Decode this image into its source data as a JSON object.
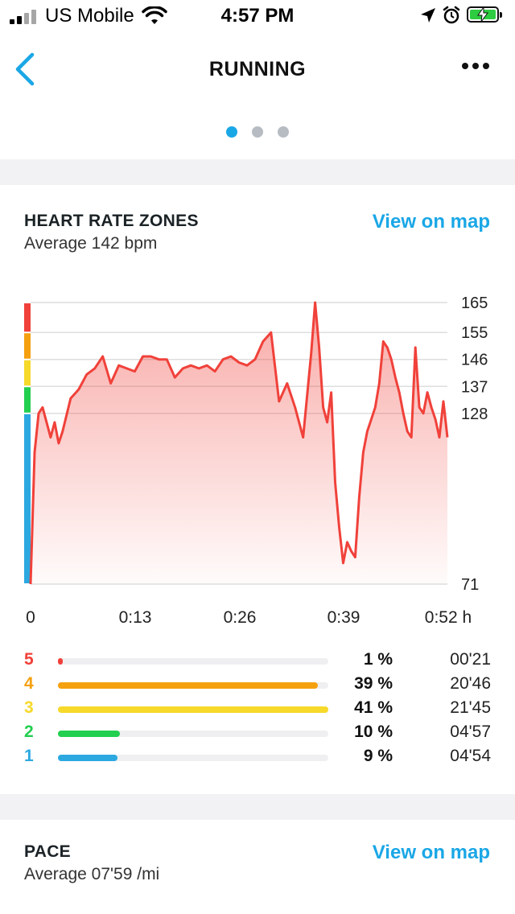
{
  "status_bar": {
    "carrier": "US Mobile",
    "time": "4:57 PM"
  },
  "nav": {
    "title": "RUNNING"
  },
  "pager": {
    "count": 3,
    "active": 0
  },
  "heart_rate": {
    "title": "HEART RATE ZONES",
    "subtitle": "Average 142 bpm",
    "map_link": "View on map",
    "zones": [
      {
        "num": "5",
        "pct_label": "1 %",
        "time": "00'21",
        "fraction": 0.01,
        "color": "#f0413a"
      },
      {
        "num": "4",
        "pct_label": "39 %",
        "time": "20'46",
        "fraction": 0.96,
        "color": "#f5a00f"
      },
      {
        "num": "3",
        "pct_label": "41 %",
        "time": "21'45",
        "fraction": 1.0,
        "color": "#f6d92a"
      },
      {
        "num": "2",
        "pct_label": "10 %",
        "time": "04'57",
        "fraction": 0.23,
        "color": "#22cf4f"
      },
      {
        "num": "1",
        "pct_label": "9 %",
        "time": "04'54",
        "fraction": 0.22,
        "color": "#2ba8e0"
      }
    ]
  },
  "pace": {
    "title": "PACE",
    "subtitle": "Average 07'59 /mi",
    "map_link": "View on map"
  },
  "chart_data": {
    "type": "area",
    "xlabel": "",
    "ylabel": "",
    "x_ticks": [
      "0",
      "0:13",
      "0:26",
      "0:39",
      "0:52 h"
    ],
    "y_ticks": [
      165,
      155,
      146,
      137,
      128,
      71
    ],
    "ylim": [
      71,
      165
    ],
    "xlim": [
      0,
      52
    ],
    "line_color": "#f0413a",
    "zone_band_colors": [
      "#f0413a",
      "#f5a00f",
      "#f6d92a",
      "#22cf4f",
      "#2ba8e0"
    ],
    "series": [
      {
        "x": [
          0,
          0.5,
          1,
          1.5,
          2,
          2.5,
          3,
          3.5,
          4,
          5,
          6,
          7,
          8,
          9,
          10,
          11,
          12,
          13,
          14,
          15,
          16,
          17,
          18,
          19,
          20,
          21,
          22,
          23,
          24,
          25,
          26,
          27,
          28,
          29,
          30,
          31,
          32,
          33,
          34,
          35,
          35.5,
          36,
          36.5,
          37,
          37.5,
          38,
          38.5,
          39,
          39.5,
          40,
          40.5,
          41,
          41.5,
          42,
          42.5,
          43,
          43.5,
          44,
          44.5,
          45,
          45.5,
          46,
          46.5,
          47,
          47.5,
          48,
          48.5,
          49,
          49.5,
          50,
          50.5,
          51,
          51.5,
          52
        ],
        "y": [
          71,
          115,
          128,
          130,
          125,
          120,
          125,
          118,
          122,
          133,
          136,
          141,
          143,
          147,
          138,
          144,
          143,
          142,
          147,
          147,
          146,
          146,
          140,
          143,
          144,
          143,
          144,
          142,
          146,
          147,
          145,
          144,
          146,
          152,
          155,
          132,
          138,
          130,
          120,
          148,
          165,
          150,
          130,
          125,
          135,
          105,
          90,
          78,
          85,
          82,
          80,
          100,
          115,
          122,
          126,
          130,
          138,
          152,
          150,
          146,
          140,
          135,
          128,
          122,
          120,
          150,
          130,
          128,
          135,
          130,
          126,
          120,
          132,
          120
        ]
      }
    ]
  }
}
